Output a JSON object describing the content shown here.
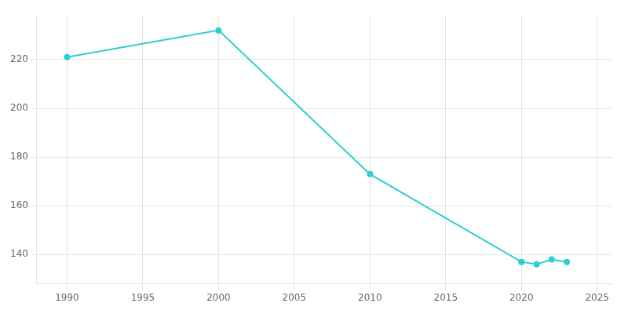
{
  "chart_data": {
    "type": "line",
    "x": [
      1990,
      2000,
      2010,
      2020,
      2021,
      2022,
      2023
    ],
    "values": [
      221,
      232,
      173,
      137,
      136,
      138,
      137
    ],
    "color": "#2ecfcf",
    "marker": "circle",
    "xlim": [
      1988,
      2026
    ],
    "ylim": [
      128,
      238
    ],
    "xticks": [
      1990,
      1995,
      2000,
      2005,
      2010,
      2015,
      2020,
      2025
    ],
    "yticks": [
      140,
      160,
      180,
      200,
      220
    ],
    "grid": true
  }
}
